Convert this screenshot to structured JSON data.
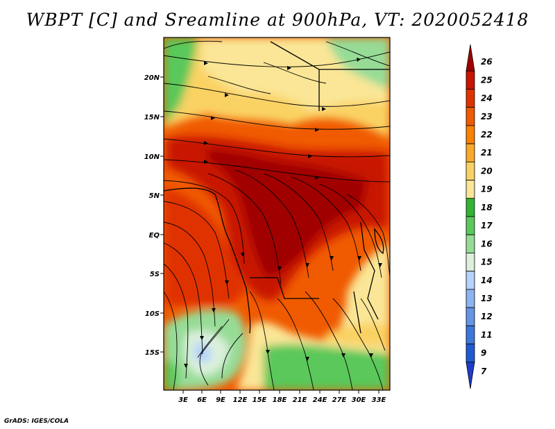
{
  "title": "WBPT [C] and Sreamline at 900hPa, VT: 2020052418",
  "footer": "GrADS: IGES/COLA",
  "lat_labels": [
    "20N",
    "15N",
    "10N",
    "5N",
    "EQ",
    "5S",
    "10S",
    "15S"
  ],
  "lon_labels": [
    "3E",
    "6E",
    "9E",
    "12E",
    "15E",
    "18E",
    "21E",
    "24E",
    "27E",
    "30E",
    "33E"
  ],
  "colorbar": {
    "labels": [
      "26",
      "25",
      "24",
      "23",
      "22",
      "21",
      "20",
      "19",
      "18",
      "17",
      "16",
      "15",
      "14",
      "13",
      "12",
      "11",
      "9",
      "7"
    ],
    "colors": [
      "#a00000",
      "#c81400",
      "#e03200",
      "#f05a00",
      "#fa8200",
      "#faaa28",
      "#fad264",
      "#fae696",
      "#32b432",
      "#5ac85a",
      "#96dc96",
      "#dcf0dc",
      "#b4d2fa",
      "#8cb4f0",
      "#6496e6",
      "#3c78dc",
      "#1e5ad2",
      "#1e3cc8"
    ]
  },
  "colors": {
    "background": "#ffffff",
    "hot": "#c81400",
    "warm": "#fae696",
    "cool": "#5ac85a"
  }
}
